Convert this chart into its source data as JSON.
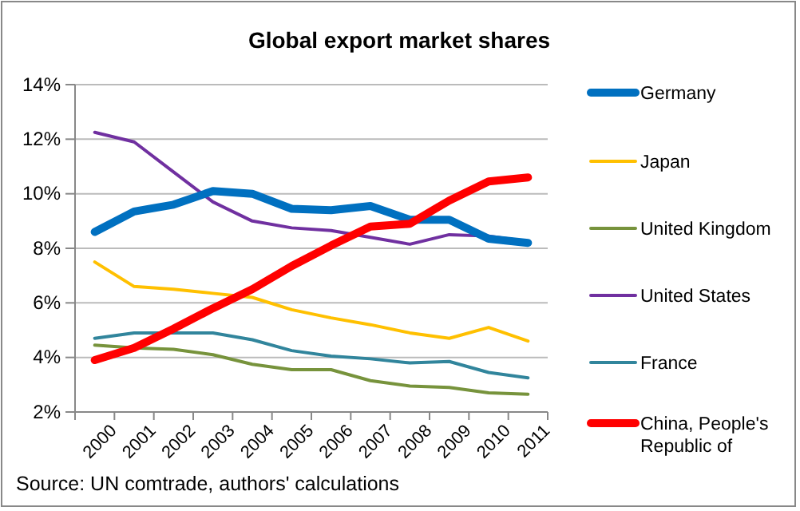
{
  "chart_data": {
    "type": "line",
    "title": "Global export market shares",
    "categories": [
      "2000",
      "2001",
      "2002",
      "2003",
      "2004",
      "2005",
      "2006",
      "2007",
      "2008",
      "2009",
      "2010",
      "2011"
    ],
    "series": [
      {
        "name": "Germany",
        "color": "#0070c0",
        "values": [
          8.6,
          9.35,
          9.6,
          10.1,
          10.0,
          9.45,
          9.4,
          9.55,
          9.05,
          9.05,
          8.35,
          8.2
        ]
      },
      {
        "name": "Japan",
        "color": "#ffc000",
        "values": [
          7.5,
          6.6,
          6.5,
          6.35,
          6.2,
          5.75,
          5.45,
          5.2,
          4.9,
          4.7,
          5.1,
          4.6
        ]
      },
      {
        "name": "United Kingdom",
        "color": "#77933c",
        "values": [
          4.45,
          4.35,
          4.3,
          4.1,
          3.75,
          3.55,
          3.55,
          3.15,
          2.95,
          2.9,
          2.7,
          2.65
        ]
      },
      {
        "name": "United States",
        "color": "#7030a0",
        "values": [
          12.25,
          11.9,
          10.8,
          9.7,
          9.0,
          8.75,
          8.65,
          8.4,
          8.15,
          8.5,
          8.45,
          8.25
        ]
      },
      {
        "name": "France",
        "color": "#31859c",
        "values": [
          4.7,
          4.9,
          4.9,
          4.9,
          4.65,
          4.25,
          4.05,
          3.95,
          3.8,
          3.85,
          3.45,
          3.25
        ]
      },
      {
        "name": "China, People's Republic of",
        "color": "#ff0000",
        "values": [
          3.9,
          4.35,
          5.05,
          5.8,
          6.5,
          7.35,
          8.1,
          8.8,
          8.9,
          9.75,
          10.45,
          10.6
        ]
      }
    ],
    "ylim": [
      2,
      14
    ],
    "yticks": [
      {
        "value": 2,
        "label": "2%"
      },
      {
        "value": 4,
        "label": "4%"
      },
      {
        "value": 6,
        "label": "6%"
      },
      {
        "value": 8,
        "label": "8%"
      },
      {
        "value": 10,
        "label": "10%"
      },
      {
        "value": 12,
        "label": "12%"
      },
      {
        "value": 14,
        "label": "14%"
      }
    ],
    "grid": "y",
    "legend": "right",
    "marker": "none",
    "line_style": "solid",
    "annotations": [
      "Source: UN comtrade, authors' calculations"
    ]
  }
}
